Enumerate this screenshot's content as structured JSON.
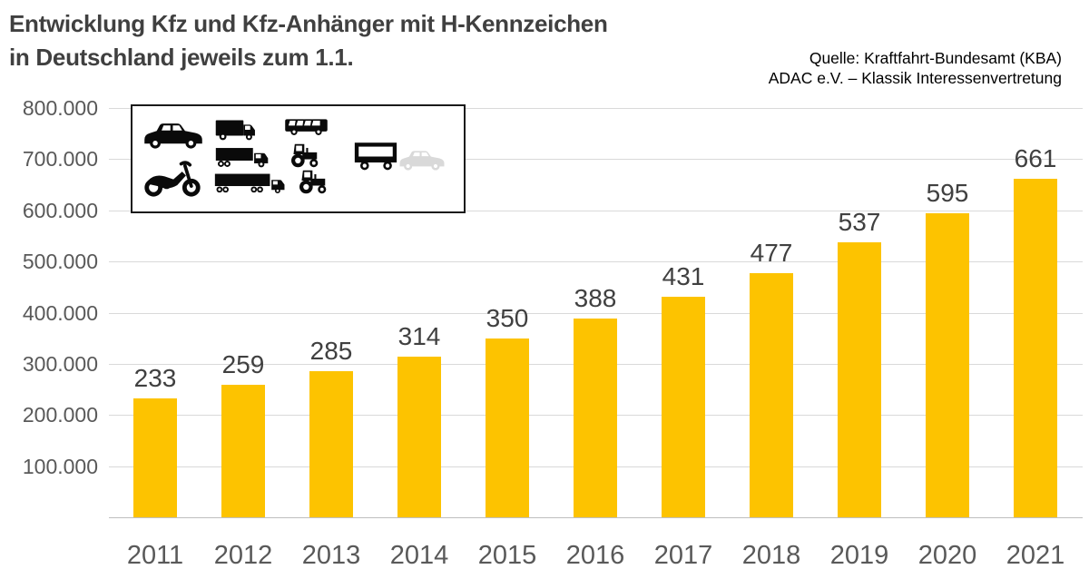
{
  "header": {
    "title_line1": "Entwicklung Kfz und Kfz-Anhänger mit H-Kennzeichen",
    "title_line2": "in Deutschland jeweils zum 1.1.",
    "source_line1": "Quelle: Kraftfahrt-Bundesamt (KBA)",
    "source_line2": "ADAC e.V. – Klassik Interessenvertretung"
  },
  "legend": {
    "description": "Pictograms of vehicle classes covered (Kfz und Kfz-Anhänger)",
    "icons": [
      "car-icon",
      "motorcycle-icon",
      "van-icon",
      "truck-icon",
      "semi-truck-icon",
      "bus-icon",
      "tractor-icon",
      "tractor-2-icon",
      "trailer-icon",
      "car-faded-icon"
    ]
  },
  "chart_data": {
    "type": "bar",
    "title": "Entwicklung Kfz und Kfz-Anhänger mit H-Kennzeichen in Deutschland jeweils zum 1.1.",
    "categories": [
      "2011",
      "2012",
      "2013",
      "2014",
      "2015",
      "2016",
      "2017",
      "2018",
      "2019",
      "2020",
      "2021"
    ],
    "values": [
      233,
      259,
      285,
      314,
      350,
      388,
      431,
      477,
      537,
      595,
      661
    ],
    "values_unit": "Tausend (bar labels ×1.000 = axis value)",
    "bar_color": "#FDC300",
    "value_label_color": "#404040",
    "axis_label_color": "#595959",
    "grid": true,
    "gridline_color": "#D9D9D9",
    "xlabel": "",
    "ylabel": "",
    "ylim": [
      0,
      800000
    ],
    "ytick_step": 100000,
    "yticks": [
      "100.000",
      "200.000",
      "300.000",
      "400.000",
      "500.000",
      "600.000",
      "700.000",
      "800.000"
    ],
    "legend_position": "none"
  }
}
